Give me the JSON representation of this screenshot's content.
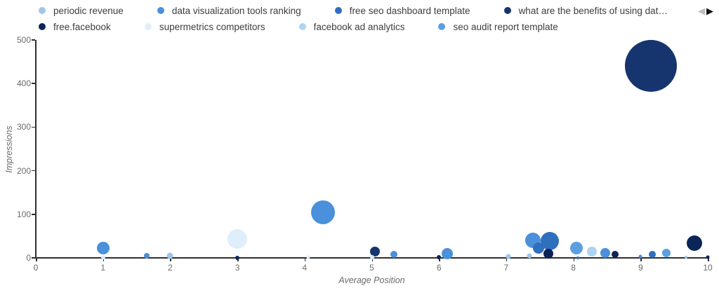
{
  "legend": {
    "prev_arrow": "◀",
    "next_arrow": "▶",
    "rows": [
      [
        {
          "label": "periodic revenue",
          "color": "#9fc5ec"
        },
        {
          "label": "data visualization tools ranking",
          "color": "#4a90db"
        },
        {
          "label": "free seo dashboard template",
          "color": "#2e6fbe"
        },
        {
          "label": "what are the benefits of using dat…",
          "color": "#16356e"
        }
      ],
      [
        {
          "label": "free.facebook",
          "color": "#0b2558"
        },
        {
          "label": "supermetrics competitors",
          "color": "#deeefa"
        },
        {
          "label": "facebook ad analytics",
          "color": "#aed4f2"
        },
        {
          "label": "seo audit report template",
          "color": "#5b9fe0"
        }
      ]
    ]
  },
  "chart_data": {
    "type": "scatter",
    "xlabel": "Average Position",
    "ylabel": "Impressions",
    "xlim": [
      0,
      10
    ],
    "ylim": [
      0,
      500
    ],
    "x_ticks": [
      0,
      1,
      2,
      3,
      4,
      5,
      6,
      7,
      8,
      9,
      10
    ],
    "y_ticks": [
      0,
      100,
      200,
      300,
      400,
      500
    ],
    "grid": false,
    "legend_position": "top",
    "series": [
      {
        "name": "periodic revenue",
        "color": "#9fc5ec",
        "points": [
          {
            "x": 2.0,
            "y": 5,
            "r": 4.5
          },
          {
            "x": 7.03,
            "y": 4,
            "r": 3.5
          },
          {
            "x": 7.35,
            "y": 5,
            "r": 3.5
          },
          {
            "x": 9.68,
            "y": 1,
            "r": 2
          }
        ]
      },
      {
        "name": "data visualization tools ranking",
        "color": "#4a90db",
        "points": [
          {
            "x": 1.0,
            "y": 22,
            "r": 9
          },
          {
            "x": 1.65,
            "y": 5,
            "r": 4
          },
          {
            "x": 4.27,
            "y": 104,
            "r": 17
          },
          {
            "x": 5.33,
            "y": 8,
            "r": 5
          },
          {
            "x": 6.12,
            "y": 10,
            "r": 8
          },
          {
            "x": 7.4,
            "y": 40,
            "r": 11
          },
          {
            "x": 8.47,
            "y": 12,
            "r": 7
          },
          {
            "x": 9.0,
            "y": 3,
            "r": 2.5
          }
        ]
      },
      {
        "name": "free seo dashboard template",
        "color": "#2e6fbe",
        "points": [
          {
            "x": 7.48,
            "y": 22,
            "r": 8
          },
          {
            "x": 7.65,
            "y": 39,
            "r": 13
          },
          {
            "x": 8.07,
            "y": 0,
            "r": 2
          },
          {
            "x": 9.17,
            "y": 8,
            "r": 5
          }
        ]
      },
      {
        "name": "what are the benefits of using dat…",
        "color": "#16356e",
        "points": [
          {
            "x": 9.15,
            "y": 440,
            "r": 37
          },
          {
            "x": 5.05,
            "y": 14,
            "r": 7
          }
        ]
      },
      {
        "name": "free.facebook",
        "color": "#0b2558",
        "points": [
          {
            "x": 3.0,
            "y": 0,
            "r": 3
          },
          {
            "x": 6.0,
            "y": 2,
            "r": 3
          },
          {
            "x": 7.63,
            "y": 10,
            "r": 7
          },
          {
            "x": 8.62,
            "y": 8,
            "r": 5
          },
          {
            "x": 9.8,
            "y": 33,
            "r": 11
          },
          {
            "x": 10.0,
            "y": 1,
            "r": 2.5
          }
        ]
      },
      {
        "name": "supermetrics competitors",
        "color": "#deeefa",
        "points": [
          {
            "x": 3.0,
            "y": 44,
            "r": 14
          },
          {
            "x": 1.0,
            "y": 2,
            "r": 3
          },
          {
            "x": 4.05,
            "y": 1,
            "r": 2.5
          },
          {
            "x": 5.0,
            "y": 2,
            "r": 3
          }
        ]
      },
      {
        "name": "facebook ad analytics",
        "color": "#aed4f2",
        "points": [
          {
            "x": 8.28,
            "y": 14,
            "r": 7
          }
        ]
      },
      {
        "name": "seo audit report template",
        "color": "#5b9fe0",
        "points": [
          {
            "x": 8.05,
            "y": 23,
            "r": 9
          },
          {
            "x": 9.38,
            "y": 11,
            "r": 6
          }
        ]
      }
    ]
  }
}
